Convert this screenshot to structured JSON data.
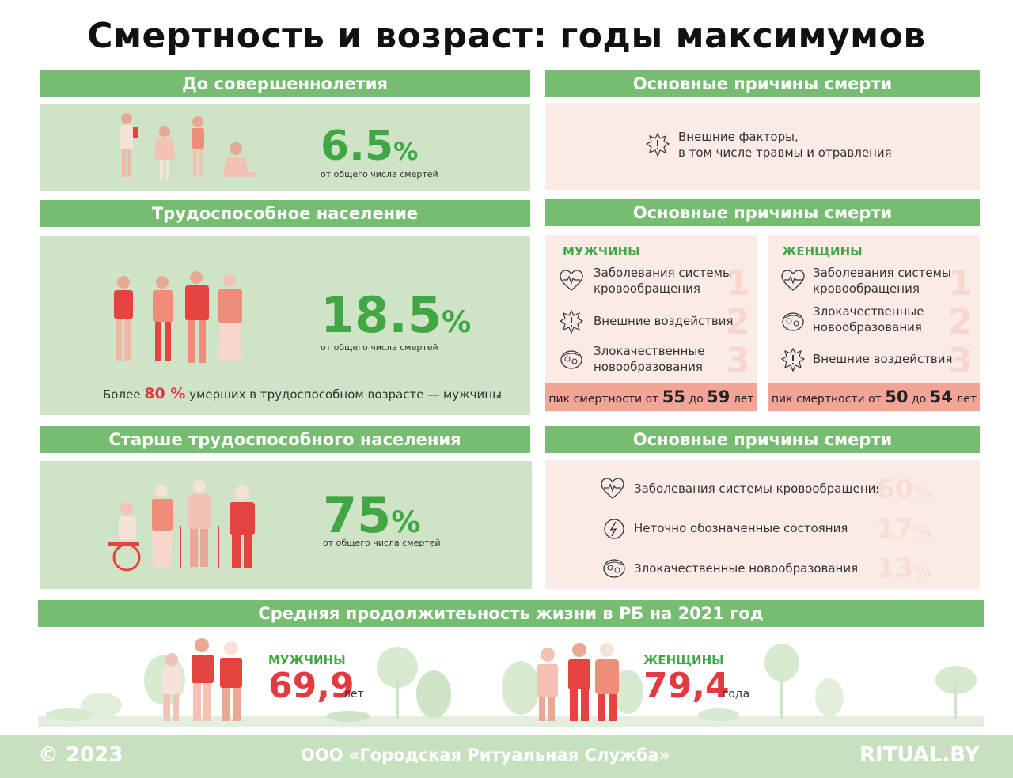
{
  "title": "Смертность и возраст: годы максимумов",
  "minors": {
    "heading": "До совершеннолетия",
    "percent": "6.5",
    "percent_sign": "%",
    "caption": "от общего числа смертей",
    "causes_heading": "Основные причины смерти",
    "cause_line1": "Внешние факторы,",
    "cause_line2": "в том числе травмы и отравления"
  },
  "working": {
    "heading": "Трудоспособное население",
    "percent": "18.5",
    "percent_sign": "%",
    "caption": "от общего числа смертей",
    "note_prefix": "Более",
    "note_value": "80 %",
    "note_suffix": "умерших в трудоспособном возрасте — мужчины",
    "causes_heading": "Основные причины смерти",
    "men": {
      "label": "МУЖЧИНЫ",
      "causes": [
        {
          "line1": "Заболевания системы",
          "line2": "кровообращения",
          "rank": "1",
          "icon": "heart-pulse-icon"
        },
        {
          "line1": "Внешние воздействия",
          "line2": "",
          "rank": "2",
          "icon": "warning-burst-icon"
        },
        {
          "line1": "Злокачественные",
          "line2": "новообразования",
          "rank": "3",
          "icon": "cell-icon"
        }
      ],
      "peak_prefix": "пик смертности от",
      "peak_from": "55",
      "peak_mid": "до",
      "peak_to": "59",
      "peak_suffix": "лет"
    },
    "women": {
      "label": "ЖЕНЩИНЫ",
      "causes": [
        {
          "line1": "Заболевания системы",
          "line2": "кровообращения",
          "rank": "1",
          "icon": "heart-pulse-icon"
        },
        {
          "line1": "Злокачественные",
          "line2": "новообразования",
          "rank": "2",
          "icon": "cell-icon"
        },
        {
          "line1": "Внешние воздействия",
          "line2": "",
          "rank": "3",
          "icon": "warning-burst-icon"
        }
      ],
      "peak_prefix": "пик смертности от",
      "peak_from": "50",
      "peak_mid": "до",
      "peak_to": "54",
      "peak_suffix": "лет"
    }
  },
  "elderly": {
    "heading": "Старше трудоспособного населения",
    "percent": "75",
    "percent_sign": "%",
    "caption": "от общего числа смертей",
    "causes_heading": "Основные причины смерти",
    "causes": [
      {
        "label": "Заболевания системы кровообращения",
        "share": "60",
        "sign": "%",
        "icon": "heart-pulse-icon"
      },
      {
        "label": "Неточно обозначенные состояния",
        "share": "17",
        "sign": "%",
        "icon": "head-question-icon"
      },
      {
        "label": "Злокачественные новообразования",
        "share": "13",
        "sign": "%",
        "icon": "cell-icon"
      }
    ]
  },
  "life": {
    "heading": "Средняя продолжитеьность жизни в РБ на 2021 год",
    "men_label": "МУЖЧИНЫ",
    "men_value": "69,9",
    "men_unit": "лет",
    "women_label": "ЖЕНЩИНЫ",
    "women_value": "79,4",
    "women_unit": "года"
  },
  "footer": {
    "copyright": "© 2023",
    "company": "ООО «Городская Ритуальная Служба»",
    "site": "RITUAL.BY"
  },
  "colors": {
    "green_band": "#76bd72",
    "green_panel": "#cfe3c6",
    "pink_panel": "#fbebe6",
    "accent_green": "#41a745",
    "accent_red": "#e33a41",
    "peak_bar": "#f2a497"
  }
}
